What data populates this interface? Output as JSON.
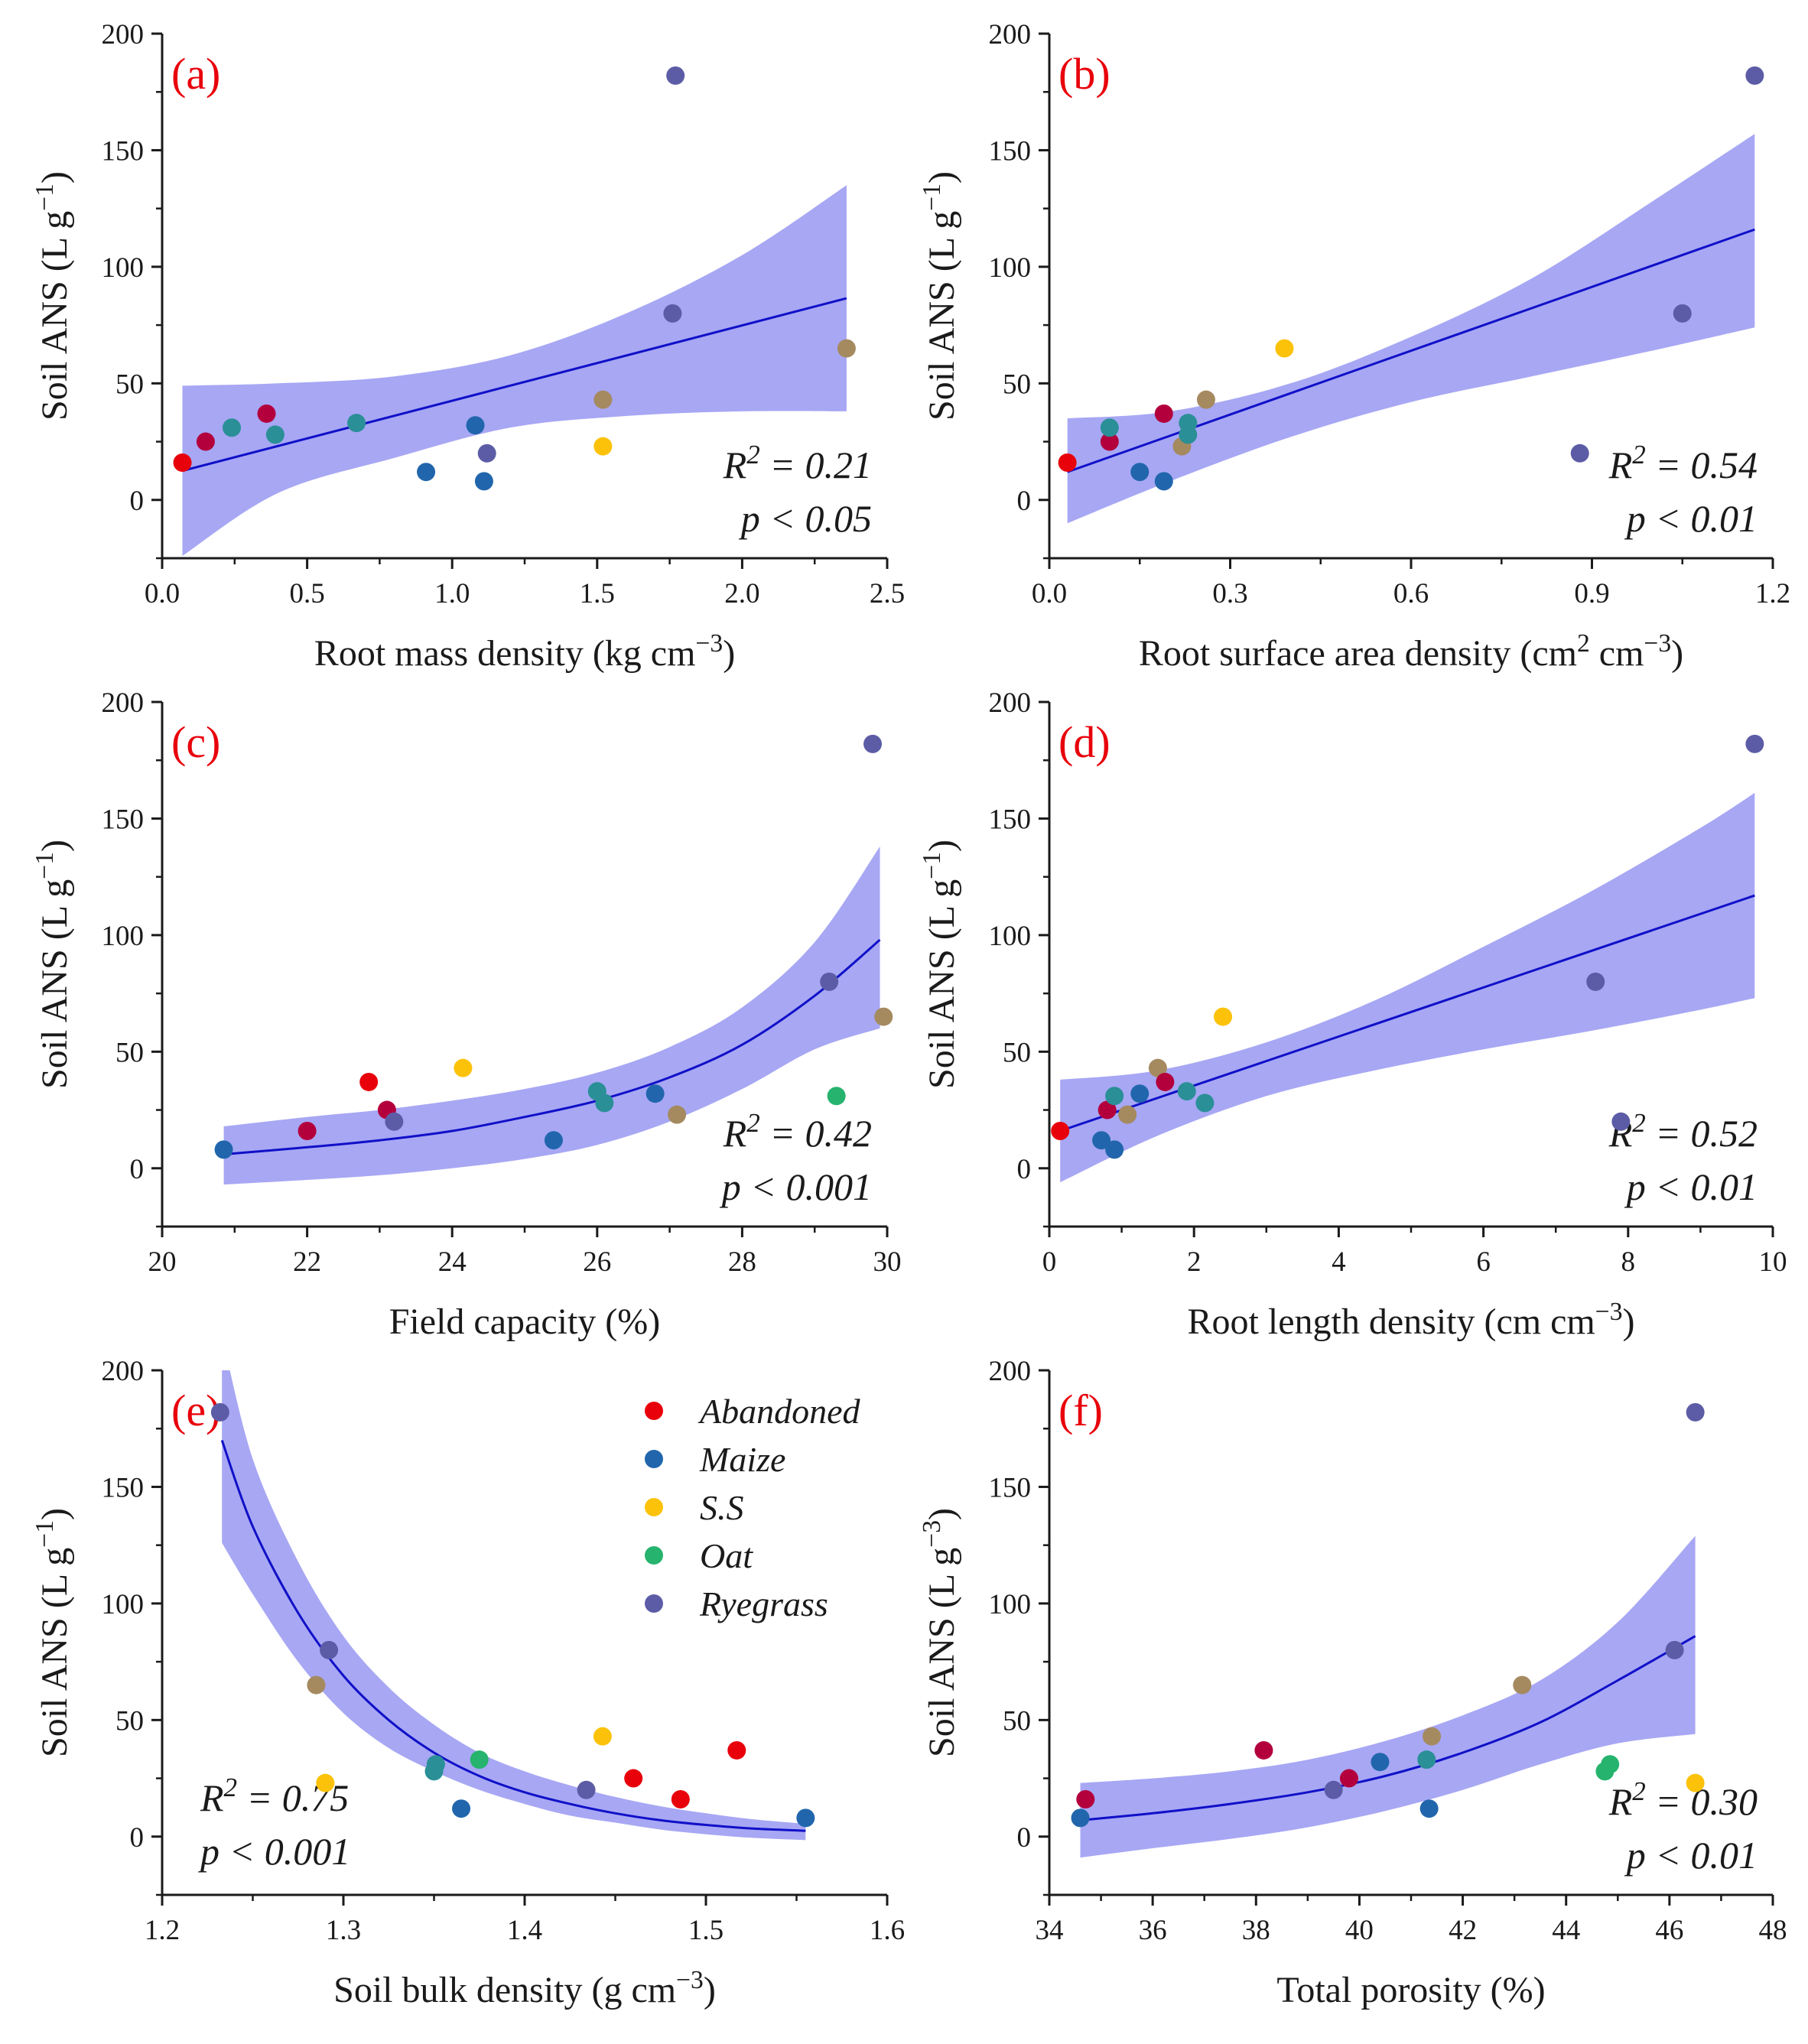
{
  "colors": {
    "Abandoned": "#e8000b",
    "Abandoned_dark": "#b3003c",
    "Maize": "#2166ac",
    "S.S": "#fcc20a",
    "S.S_dark": "#a58a60",
    "Oat": "#26b36e",
    "Oat_dark": "#2a8f96",
    "Ryegrass": "#5c5ca6",
    "fit_line": "#1010c8",
    "band": "#9898f2"
  },
  "legend": {
    "items": [
      "Abandoned",
      "Maize",
      "S.S",
      "Oat",
      "Ryegrass"
    ]
  },
  "chart_data": [
    {
      "id": "a",
      "type": "scatter",
      "panel_label": "(a)",
      "xlabel": "Root mass density (kg cm⁻³)",
      "ylabel": "Soil ANS (L g⁻¹)",
      "xlim": [
        0,
        2.5
      ],
      "ylim": [
        -25,
        200
      ],
      "xticks": [
        0,
        0.5,
        1.0,
        1.5,
        2.0,
        2.5
      ],
      "xtick_labels": [
        "0.0",
        "0.5",
        "1.0",
        "1.5",
        "2.0",
        "2.5"
      ],
      "yticks": [
        0,
        50,
        100,
        150,
        200
      ],
      "ytick_labels": [
        "0",
        "50",
        "100",
        "150",
        "200"
      ],
      "r2_text": "R² = 0.21",
      "p_text": "p < 0.05",
      "fit": {
        "type": "linear",
        "x": [
          0.07,
          2.36
        ],
        "y": [
          12.5,
          86.5
        ]
      },
      "band": {
        "x": [
          0.07,
          0.4,
          0.8,
          1.2,
          1.6,
          2.0,
          2.36
        ],
        "lo": [
          -24,
          3,
          18,
          31,
          36,
          38,
          38
        ],
        "hi": [
          49,
          50,
          53,
          62,
          80,
          105,
          135
        ]
      },
      "points": [
        {
          "x": 0.07,
          "y": 16,
          "g": "Abandoned"
        },
        {
          "x": 0.15,
          "y": 25,
          "g": "Abandoned_dark"
        },
        {
          "x": 0.36,
          "y": 37,
          "g": "Abandoned_dark"
        },
        {
          "x": 0.24,
          "y": 31,
          "g": "Oat_dark"
        },
        {
          "x": 0.39,
          "y": 28,
          "g": "Oat_dark"
        },
        {
          "x": 0.67,
          "y": 33,
          "g": "Oat_dark"
        },
        {
          "x": 0.91,
          "y": 12,
          "g": "Maize"
        },
        {
          "x": 1.08,
          "y": 32,
          "g": "Maize"
        },
        {
          "x": 1.11,
          "y": 8,
          "g": "Maize"
        },
        {
          "x": 1.12,
          "y": 20,
          "g": "Ryegrass"
        },
        {
          "x": 1.52,
          "y": 43,
          "g": "S.S_dark"
        },
        {
          "x": 1.52,
          "y": 23,
          "g": "S.S"
        },
        {
          "x": 1.76,
          "y": 80,
          "g": "Ryegrass"
        },
        {
          "x": 1.77,
          "y": 182,
          "g": "Ryegrass"
        },
        {
          "x": 2.36,
          "y": 65,
          "g": "S.S_dark"
        }
      ]
    },
    {
      "id": "b",
      "type": "scatter",
      "panel_label": "(b)",
      "xlabel": "Root surface area density (cm² cm⁻³)",
      "ylabel": "Soil ANS (L g⁻¹)",
      "xlim": [
        0,
        1.2
      ],
      "ylim": [
        -25,
        200
      ],
      "xticks": [
        0,
        0.3,
        0.6,
        0.9,
        1.2
      ],
      "xtick_labels": [
        "0.0",
        "0.3",
        "0.6",
        "0.9",
        "1.2"
      ],
      "yticks": [
        0,
        50,
        100,
        150,
        200
      ],
      "ytick_labels": [
        "0",
        "50",
        "100",
        "150",
        "200"
      ],
      "r2_text": "R² = 0.54",
      "p_text": "p < 0.01",
      "fit": {
        "type": "linear",
        "x": [
          0.03,
          1.17
        ],
        "y": [
          12,
          116
        ]
      },
      "band": {
        "x": [
          0.03,
          0.2,
          0.4,
          0.6,
          0.8,
          1.0,
          1.17
        ],
        "lo": [
          -10,
          8,
          27,
          42,
          53,
          64,
          74
        ],
        "hi": [
          35,
          38,
          50,
          70,
          95,
          128,
          157
        ]
      },
      "points": [
        {
          "x": 0.03,
          "y": 16,
          "g": "Abandoned"
        },
        {
          "x": 0.1,
          "y": 25,
          "g": "Abandoned_dark"
        },
        {
          "x": 0.1,
          "y": 31,
          "g": "Oat_dark"
        },
        {
          "x": 0.19,
          "y": 37,
          "g": "Abandoned_dark"
        },
        {
          "x": 0.15,
          "y": 12,
          "g": "Maize"
        },
        {
          "x": 0.19,
          "y": 8,
          "g": "Maize"
        },
        {
          "x": 0.22,
          "y": 23,
          "g": "S.S_dark"
        },
        {
          "x": 0.23,
          "y": 28,
          "g": "Oat_dark"
        },
        {
          "x": 0.23,
          "y": 33,
          "g": "Oat_dark"
        },
        {
          "x": 0.26,
          "y": 43,
          "g": "S.S_dark"
        },
        {
          "x": 0.39,
          "y": 65,
          "g": "S.S"
        },
        {
          "x": 0.88,
          "y": 20,
          "g": "Ryegrass"
        },
        {
          "x": 1.05,
          "y": 80,
          "g": "Ryegrass"
        },
        {
          "x": 1.17,
          "y": 182,
          "g": "Ryegrass"
        }
      ]
    },
    {
      "id": "c",
      "type": "scatter",
      "panel_label": "(c)",
      "xlabel": "Field capacity (%)",
      "ylabel": "Soil ANS (L g⁻¹)",
      "xlim": [
        20,
        30
      ],
      "ylim": [
        -25,
        200
      ],
      "xticks": [
        20,
        22,
        24,
        26,
        28,
        30
      ],
      "xtick_labels": [
        "20",
        "22",
        "24",
        "26",
        "28",
        "30"
      ],
      "yticks": [
        0,
        50,
        100,
        150,
        200
      ],
      "ytick_labels": [
        "0",
        "50",
        "100",
        "150",
        "200"
      ],
      "r2_text": "R² = 0.42",
      "p_text": "p < 0.001",
      "fit": {
        "type": "curve",
        "x": [
          20.85,
          22,
          23,
          24,
          25,
          26,
          27,
          28,
          29,
          29.9
        ],
        "y": [
          6,
          9,
          12,
          16,
          22,
          29,
          39,
          53,
          74,
          98
        ]
      },
      "band": {
        "x": [
          20.85,
          22,
          23,
          24,
          25,
          26,
          27,
          28,
          29,
          29.9
        ],
        "lo": [
          -7,
          -5,
          -3,
          0,
          4,
          10,
          20,
          34,
          51,
          60
        ],
        "hi": [
          18,
          22,
          25,
          29,
          34,
          41,
          52,
          69,
          97,
          138
        ]
      },
      "points": [
        {
          "x": 20.85,
          "y": 8,
          "g": "Maize"
        },
        {
          "x": 22,
          "y": 16,
          "g": "Abandoned_dark"
        },
        {
          "x": 22.85,
          "y": 37,
          "g": "Abandoned"
        },
        {
          "x": 23.1,
          "y": 25,
          "g": "Abandoned_dark"
        },
        {
          "x": 23.2,
          "y": 20,
          "g": "Ryegrass"
        },
        {
          "x": 24.15,
          "y": 43,
          "g": "S.S"
        },
        {
          "x": 25.4,
          "y": 12,
          "g": "Maize"
        },
        {
          "x": 26,
          "y": 33,
          "g": "Oat_dark"
        },
        {
          "x": 26.1,
          "y": 28,
          "g": "Oat_dark"
        },
        {
          "x": 26.8,
          "y": 32,
          "g": "Maize"
        },
        {
          "x": 27.1,
          "y": 23,
          "g": "S.S_dark"
        },
        {
          "x": 29.2,
          "y": 80,
          "g": "Ryegrass"
        },
        {
          "x": 29.3,
          "y": 31,
          "g": "Oat"
        },
        {
          "x": 29.8,
          "y": 182,
          "g": "Ryegrass"
        },
        {
          "x": 29.95,
          "y": 65,
          "g": "S.S_dark"
        }
      ]
    },
    {
      "id": "d",
      "type": "scatter",
      "panel_label": "(d)",
      "xlabel": "Root length density (cm cm⁻³)",
      "ylabel": "Soil ANS (L g⁻¹)",
      "xlim": [
        0,
        10
      ],
      "ylim": [
        -25,
        200
      ],
      "xticks": [
        0,
        2,
        4,
        6,
        8,
        10
      ],
      "xtick_labels": [
        "0",
        "2",
        "4",
        "6",
        "8",
        "10"
      ],
      "yticks": [
        0,
        50,
        100,
        150,
        200
      ],
      "ytick_labels": [
        "0",
        "50",
        "100",
        "150",
        "200"
      ],
      "r2_text": "R² = 0.52",
      "p_text": "p < 0.01",
      "fit": {
        "type": "linear",
        "x": [
          0.15,
          9.75
        ],
        "y": [
          16,
          117
        ]
      },
      "band": {
        "x": [
          0.15,
          1.5,
          3,
          4.5,
          6,
          7.5,
          9,
          9.75
        ],
        "lo": [
          -6,
          14,
          31,
          42,
          51,
          59,
          68,
          73
        ],
        "hi": [
          38,
          42,
          54,
          72,
          95,
          119,
          146,
          161
        ]
      },
      "points": [
        {
          "x": 0.15,
          "y": 16,
          "g": "Abandoned"
        },
        {
          "x": 0.8,
          "y": 25,
          "g": "Abandoned_dark"
        },
        {
          "x": 0.72,
          "y": 12,
          "g": "Maize"
        },
        {
          "x": 0.9,
          "y": 8,
          "g": "Maize"
        },
        {
          "x": 0.9,
          "y": 31,
          "g": "Oat_dark"
        },
        {
          "x": 1.08,
          "y": 23,
          "g": "S.S_dark"
        },
        {
          "x": 1.25,
          "y": 32,
          "g": "Maize"
        },
        {
          "x": 1.5,
          "y": 43,
          "g": "S.S_dark"
        },
        {
          "x": 1.6,
          "y": 37,
          "g": "Abandoned_dark"
        },
        {
          "x": 1.9,
          "y": 33,
          "g": "Oat_dark"
        },
        {
          "x": 2.15,
          "y": 28,
          "g": "Oat_dark"
        },
        {
          "x": 2.4,
          "y": 65,
          "g": "S.S"
        },
        {
          "x": 7.55,
          "y": 80,
          "g": "Ryegrass"
        },
        {
          "x": 7.9,
          "y": 20,
          "g": "Ryegrass"
        },
        {
          "x": 9.75,
          "y": 182,
          "g": "Ryegrass"
        }
      ]
    },
    {
      "id": "e",
      "type": "scatter",
      "panel_label": "(e)",
      "xlabel": "Soil bulk density (g cm⁻³)",
      "ylabel": "Soil ANS (L g⁻¹)",
      "xlim": [
        1.2,
        1.6
      ],
      "ylim": [
        -25,
        200
      ],
      "xticks": [
        1.2,
        1.3,
        1.4,
        1.5,
        1.6
      ],
      "xtick_labels": [
        "1.2",
        "1.3",
        "1.4",
        "1.5",
        "1.6"
      ],
      "yticks": [
        0,
        50,
        100,
        150,
        200
      ],
      "ytick_labels": [
        "0",
        "50",
        "100",
        "150",
        "200"
      ],
      "r2_text": "R² = 0.75",
      "p_text": "p < 0.001",
      "fit": {
        "type": "curve",
        "x": [
          1.233,
          1.25,
          1.275,
          1.3,
          1.325,
          1.35,
          1.375,
          1.4,
          1.425,
          1.45,
          1.475,
          1.5,
          1.525,
          1.555
        ],
        "y": [
          170,
          133,
          96,
          69,
          50,
          36,
          26,
          19,
          14,
          10,
          7,
          5,
          3.5,
          2.5
        ]
      },
      "band": {
        "x": [
          1.233,
          1.25,
          1.275,
          1.3,
          1.325,
          1.35,
          1.375,
          1.4,
          1.425,
          1.45,
          1.475,
          1.5,
          1.525,
          1.555
        ],
        "lo": [
          126,
          104,
          75,
          53,
          38,
          28,
          20,
          14,
          9,
          6,
          3,
          1,
          -0.5,
          -1.5
        ],
        "hi": [
          215,
          162,
          118,
          86,
          64,
          48,
          36,
          28,
          22,
          17,
          13,
          10,
          7.5,
          5.5
        ]
      },
      "points": [
        {
          "x": 1.232,
          "y": 182,
          "g": "Ryegrass"
        },
        {
          "x": 1.285,
          "y": 65,
          "g": "S.S_dark"
        },
        {
          "x": 1.29,
          "y": 23,
          "g": "S.S"
        },
        {
          "x": 1.292,
          "y": 80,
          "g": "Ryegrass"
        },
        {
          "x": 1.35,
          "y": 28,
          "g": "Oat_dark"
        },
        {
          "x": 1.351,
          "y": 31,
          "g": "Oat_dark"
        },
        {
          "x": 1.365,
          "y": 12,
          "g": "Maize"
        },
        {
          "x": 1.375,
          "y": 33,
          "g": "Oat"
        },
        {
          "x": 1.434,
          "y": 20,
          "g": "Ryegrass"
        },
        {
          "x": 1.443,
          "y": 43,
          "g": "S.S"
        },
        {
          "x": 1.46,
          "y": 25,
          "g": "Abandoned"
        },
        {
          "x": 1.486,
          "y": 16,
          "g": "Abandoned"
        },
        {
          "x": 1.517,
          "y": 37,
          "g": "Abandoned"
        },
        {
          "x": 1.555,
          "y": 8,
          "g": "Maize"
        }
      ]
    },
    {
      "id": "f",
      "type": "scatter",
      "panel_label": "(f)",
      "xlabel": "Total porosity (%)",
      "ylabel": "Soil ANS (L g⁻³)",
      "xlim": [
        34,
        48
      ],
      "ylim": [
        -25,
        200
      ],
      "xticks": [
        34,
        36,
        38,
        40,
        42,
        44,
        46,
        48
      ],
      "xtick_labels": [
        "34",
        "36",
        "38",
        "40",
        "42",
        "44",
        "46",
        "48"
      ],
      "yticks": [
        0,
        50,
        100,
        150,
        200
      ],
      "ytick_labels": [
        "0",
        "50",
        "100",
        "150",
        "200"
      ],
      "r2_text": "R² = 0.30",
      "p_text": "p < 0.01",
      "fit": {
        "type": "curve",
        "x": [
          34.6,
          36,
          37.5,
          39,
          40.5,
          42,
          43.5,
          45,
          46.5
        ],
        "y": [
          7,
          10,
          14,
          19,
          26,
          36,
          49,
          67,
          86
        ]
      },
      "band": {
        "x": [
          34.6,
          36,
          37.5,
          39,
          40.5,
          42,
          43.5,
          45,
          46.5
        ],
        "lo": [
          -9,
          -5,
          -1,
          4,
          11,
          20,
          31,
          40,
          44
        ],
        "hi": [
          23,
          25,
          28,
          33,
          41,
          52,
          67,
          92,
          129
        ]
      },
      "points": [
        {
          "x": 34.6,
          "y": 8,
          "g": "Maize"
        },
        {
          "x": 34.7,
          "y": 16,
          "g": "Abandoned_dark"
        },
        {
          "x": 38.15,
          "y": 37,
          "g": "Abandoned_dark"
        },
        {
          "x": 39.5,
          "y": 20,
          "g": "Ryegrass"
        },
        {
          "x": 39.8,
          "y": 25,
          "g": "Abandoned_dark"
        },
        {
          "x": 40.4,
          "y": 32,
          "g": "Maize"
        },
        {
          "x": 41.3,
          "y": 33,
          "g": "Oat_dark"
        },
        {
          "x": 41.35,
          "y": 12,
          "g": "Maize"
        },
        {
          "x": 41.4,
          "y": 43,
          "g": "S.S_dark"
        },
        {
          "x": 43.15,
          "y": 65,
          "g": "S.S_dark"
        },
        {
          "x": 44.75,
          "y": 28,
          "g": "Oat"
        },
        {
          "x": 44.85,
          "y": 31,
          "g": "Oat"
        },
        {
          "x": 46.1,
          "y": 80,
          "g": "Ryegrass"
        },
        {
          "x": 46.5,
          "y": 182,
          "g": "Ryegrass"
        },
        {
          "x": 46.5,
          "y": 23,
          "g": "S.S"
        }
      ]
    }
  ]
}
